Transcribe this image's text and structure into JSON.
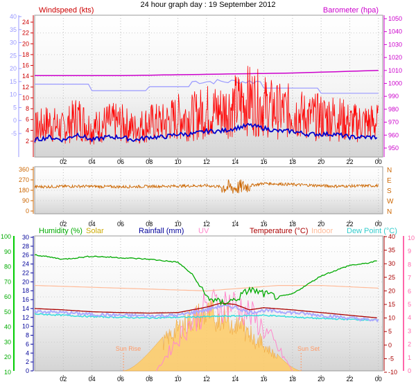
{
  "title": "24 hour graph day : 19 September 2012",
  "time_ticks": [
    "02",
    "04",
    "06",
    "08",
    "10",
    "12",
    "14",
    "16",
    "18",
    "20",
    "22",
    "00"
  ],
  "colors": {
    "windspeed": "#ff0000",
    "windgust_avg": "#0000cc",
    "temp_scale": "#9999ff",
    "barometer": "#cc00cc",
    "direction": "#cc6600",
    "humidity": "#00aa00",
    "solar": "#ffcc66",
    "rainfall": "#000099",
    "uv": "#ff88cc",
    "temperature": "#aa0000",
    "indoor": "#ffbb99",
    "dewpoint": "#33dddd",
    "axis_green": "#00cc00",
    "axis_pink": "#ff66aa"
  },
  "chart_data": [
    {
      "type": "line",
      "panel": "wind-barometer",
      "title": "24 hour graph day : 19 September 2012",
      "left_label": "Windspeed (kts)",
      "right_label": "Barometer (hpa)",
      "left_axis_red": [
        2,
        4,
        6,
        8,
        10,
        12,
        14,
        16,
        18,
        20,
        22,
        24
      ],
      "left_axis_blue": [
        -5,
        0,
        5,
        10,
        15,
        20,
        25,
        30,
        35,
        40
      ],
      "right_axis": [
        950,
        960,
        970,
        980,
        990,
        1000,
        1010,
        1020,
        1030,
        1040,
        1050
      ],
      "series": [
        {
          "name": "Windspeed (kts)",
          "x": [
            0,
            1,
            2,
            3,
            4,
            5,
            6,
            7,
            8,
            9,
            10,
            11,
            12,
            13,
            14,
            15,
            16,
            17,
            18,
            19,
            20,
            21,
            22,
            23,
            24
          ],
          "values": [
            4,
            5,
            4,
            6,
            4,
            5,
            5,
            4,
            5,
            5,
            6,
            6,
            7,
            7,
            8,
            9,
            8,
            7,
            7,
            6,
            6,
            6,
            5,
            5,
            5
          ]
        },
        {
          "name": "Barometer (hpa)",
          "x": [
            0,
            6,
            12,
            18,
            24
          ],
          "values": [
            1006,
            1006,
            1007,
            1008,
            1010
          ]
        }
      ]
    },
    {
      "type": "line",
      "panel": "wind-direction",
      "left_axis": [
        0,
        90,
        180,
        270,
        360
      ],
      "right_axis": [
        "N",
        "W",
        "S",
        "E",
        "N"
      ],
      "series": [
        {
          "name": "Wind direction",
          "x": [
            0,
            3,
            6,
            9,
            12,
            14,
            16,
            18,
            21,
            24
          ],
          "values": [
            210,
            215,
            210,
            215,
            220,
            200,
            240,
            230,
            215,
            220
          ]
        }
      ]
    },
    {
      "type": "line",
      "panel": "weather",
      "legend": [
        "Humidity (%)",
        "Solar",
        "Rainfall (mm)",
        "UV",
        "Temperature (°C)",
        "Indoor",
        "Dew Point (°C)"
      ],
      "annotations": [
        "Sun Rise",
        "Sun Set"
      ],
      "left_axis_green": [
        10,
        20,
        30,
        40,
        50,
        60,
        70,
        80,
        90,
        100
      ],
      "left_axis_blue": [
        0,
        2,
        4,
        6,
        8,
        10,
        12,
        14,
        16,
        18,
        20,
        22,
        24,
        26,
        28,
        30
      ],
      "right_axis_red": [
        -10,
        -5,
        0,
        5,
        10,
        15,
        20,
        25,
        30,
        35,
        40
      ],
      "right_axis_pink": [
        0,
        1,
        2,
        3,
        4,
        5,
        6,
        7,
        8,
        9,
        10
      ],
      "series": [
        {
          "name": "Humidity (%)",
          "x": [
            0,
            2,
            4,
            6,
            8,
            10,
            11,
            12,
            13,
            14,
            15,
            16,
            17,
            18,
            20,
            22,
            23,
            24
          ],
          "values": [
            88,
            85,
            87,
            86,
            85,
            83,
            75,
            60,
            56,
            58,
            65,
            62,
            60,
            62,
            74,
            81,
            82,
            84
          ]
        },
        {
          "name": "Temperature (°C)",
          "x": [
            0,
            2,
            4,
            6,
            8,
            10,
            11,
            12,
            13,
            14,
            15,
            16,
            18,
            20,
            22,
            24
          ],
          "values": [
            13.5,
            13,
            12.3,
            12,
            11.8,
            12,
            13,
            14,
            15.5,
            15,
            13,
            13.8,
            13,
            12,
            11,
            10
          ]
        },
        {
          "name": "Dew Point (°C)",
          "x": [
            0,
            4,
            8,
            12,
            16,
            20,
            24
          ],
          "values": [
            11.5,
            10.5,
            10,
            10.5,
            11,
            9.8,
            9.2
          ]
        },
        {
          "name": "Indoor",
          "x": [
            0,
            6,
            12,
            17,
            20,
            24
          ],
          "values": [
            22,
            21,
            20,
            22,
            22,
            21
          ]
        }
      ]
    }
  ]
}
